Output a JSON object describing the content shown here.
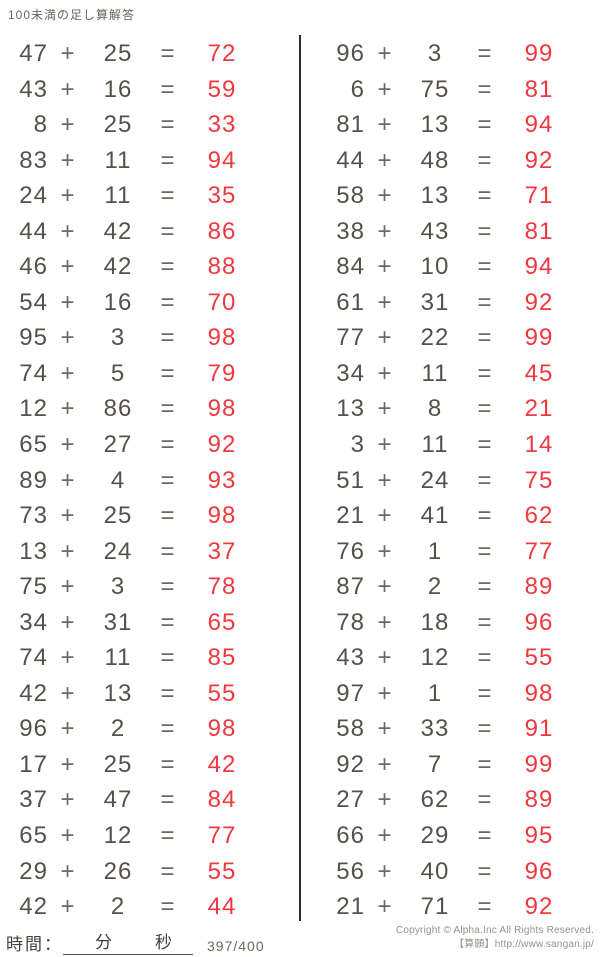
{
  "page": {
    "title": "100未満の足し算解答"
  },
  "symbols": {
    "plus": "+",
    "equals": "="
  },
  "colors": {
    "operand_text": "#55504a",
    "operator_text": "#6e6862",
    "answer_text": "#f0383f",
    "divider": "#2e2b28"
  },
  "columns": {
    "left": [
      {
        "a": "47",
        "b": "25",
        "sum": "72"
      },
      {
        "a": "43",
        "b": "16",
        "sum": "59"
      },
      {
        "a": "8",
        "b": "25",
        "sum": "33"
      },
      {
        "a": "83",
        "b": "11",
        "sum": "94"
      },
      {
        "a": "24",
        "b": "11",
        "sum": "35"
      },
      {
        "a": "44",
        "b": "42",
        "sum": "86"
      },
      {
        "a": "46",
        "b": "42",
        "sum": "88"
      },
      {
        "a": "54",
        "b": "16",
        "sum": "70"
      },
      {
        "a": "95",
        "b": "3",
        "sum": "98"
      },
      {
        "a": "74",
        "b": "5",
        "sum": "79"
      },
      {
        "a": "12",
        "b": "86",
        "sum": "98"
      },
      {
        "a": "65",
        "b": "27",
        "sum": "92"
      },
      {
        "a": "89",
        "b": "4",
        "sum": "93"
      },
      {
        "a": "73",
        "b": "25",
        "sum": "98"
      },
      {
        "a": "13",
        "b": "24",
        "sum": "37"
      },
      {
        "a": "75",
        "b": "3",
        "sum": "78"
      },
      {
        "a": "34",
        "b": "31",
        "sum": "65"
      },
      {
        "a": "74",
        "b": "11",
        "sum": "85"
      },
      {
        "a": "42",
        "b": "13",
        "sum": "55"
      },
      {
        "a": "96",
        "b": "2",
        "sum": "98"
      },
      {
        "a": "17",
        "b": "25",
        "sum": "42"
      },
      {
        "a": "37",
        "b": "47",
        "sum": "84"
      },
      {
        "a": "65",
        "b": "12",
        "sum": "77"
      },
      {
        "a": "29",
        "b": "26",
        "sum": "55"
      },
      {
        "a": "42",
        "b": "2",
        "sum": "44"
      }
    ],
    "right": [
      {
        "a": "96",
        "b": "3",
        "sum": "99"
      },
      {
        "a": "6",
        "b": "75",
        "sum": "81"
      },
      {
        "a": "81",
        "b": "13",
        "sum": "94"
      },
      {
        "a": "44",
        "b": "48",
        "sum": "92"
      },
      {
        "a": "58",
        "b": "13",
        "sum": "71"
      },
      {
        "a": "38",
        "b": "43",
        "sum": "81"
      },
      {
        "a": "84",
        "b": "10",
        "sum": "94"
      },
      {
        "a": "61",
        "b": "31",
        "sum": "92"
      },
      {
        "a": "77",
        "b": "22",
        "sum": "99"
      },
      {
        "a": "34",
        "b": "11",
        "sum": "45"
      },
      {
        "a": "13",
        "b": "8",
        "sum": "21"
      },
      {
        "a": "3",
        "b": "11",
        "sum": "14"
      },
      {
        "a": "51",
        "b": "24",
        "sum": "75"
      },
      {
        "a": "21",
        "b": "41",
        "sum": "62"
      },
      {
        "a": "76",
        "b": "1",
        "sum": "77"
      },
      {
        "a": "87",
        "b": "2",
        "sum": "89"
      },
      {
        "a": "78",
        "b": "18",
        "sum": "96"
      },
      {
        "a": "43",
        "b": "12",
        "sum": "55"
      },
      {
        "a": "97",
        "b": "1",
        "sum": "98"
      },
      {
        "a": "58",
        "b": "33",
        "sum": "91"
      },
      {
        "a": "92",
        "b": "7",
        "sum": "99"
      },
      {
        "a": "27",
        "b": "62",
        "sum": "89"
      },
      {
        "a": "66",
        "b": "29",
        "sum": "95"
      },
      {
        "a": "56",
        "b": "40",
        "sum": "96"
      },
      {
        "a": "21",
        "b": "71",
        "sum": "92"
      }
    ]
  },
  "footer": {
    "time_label": "時間：",
    "minutes_label": "分",
    "seconds_label": "秒",
    "page_indicator": "397/400",
    "copyright_line1": "Copyright © Alpha.Inc All Rights Reserved.",
    "copyright_line2": "【算願】http://www.sangan.jp/"
  }
}
